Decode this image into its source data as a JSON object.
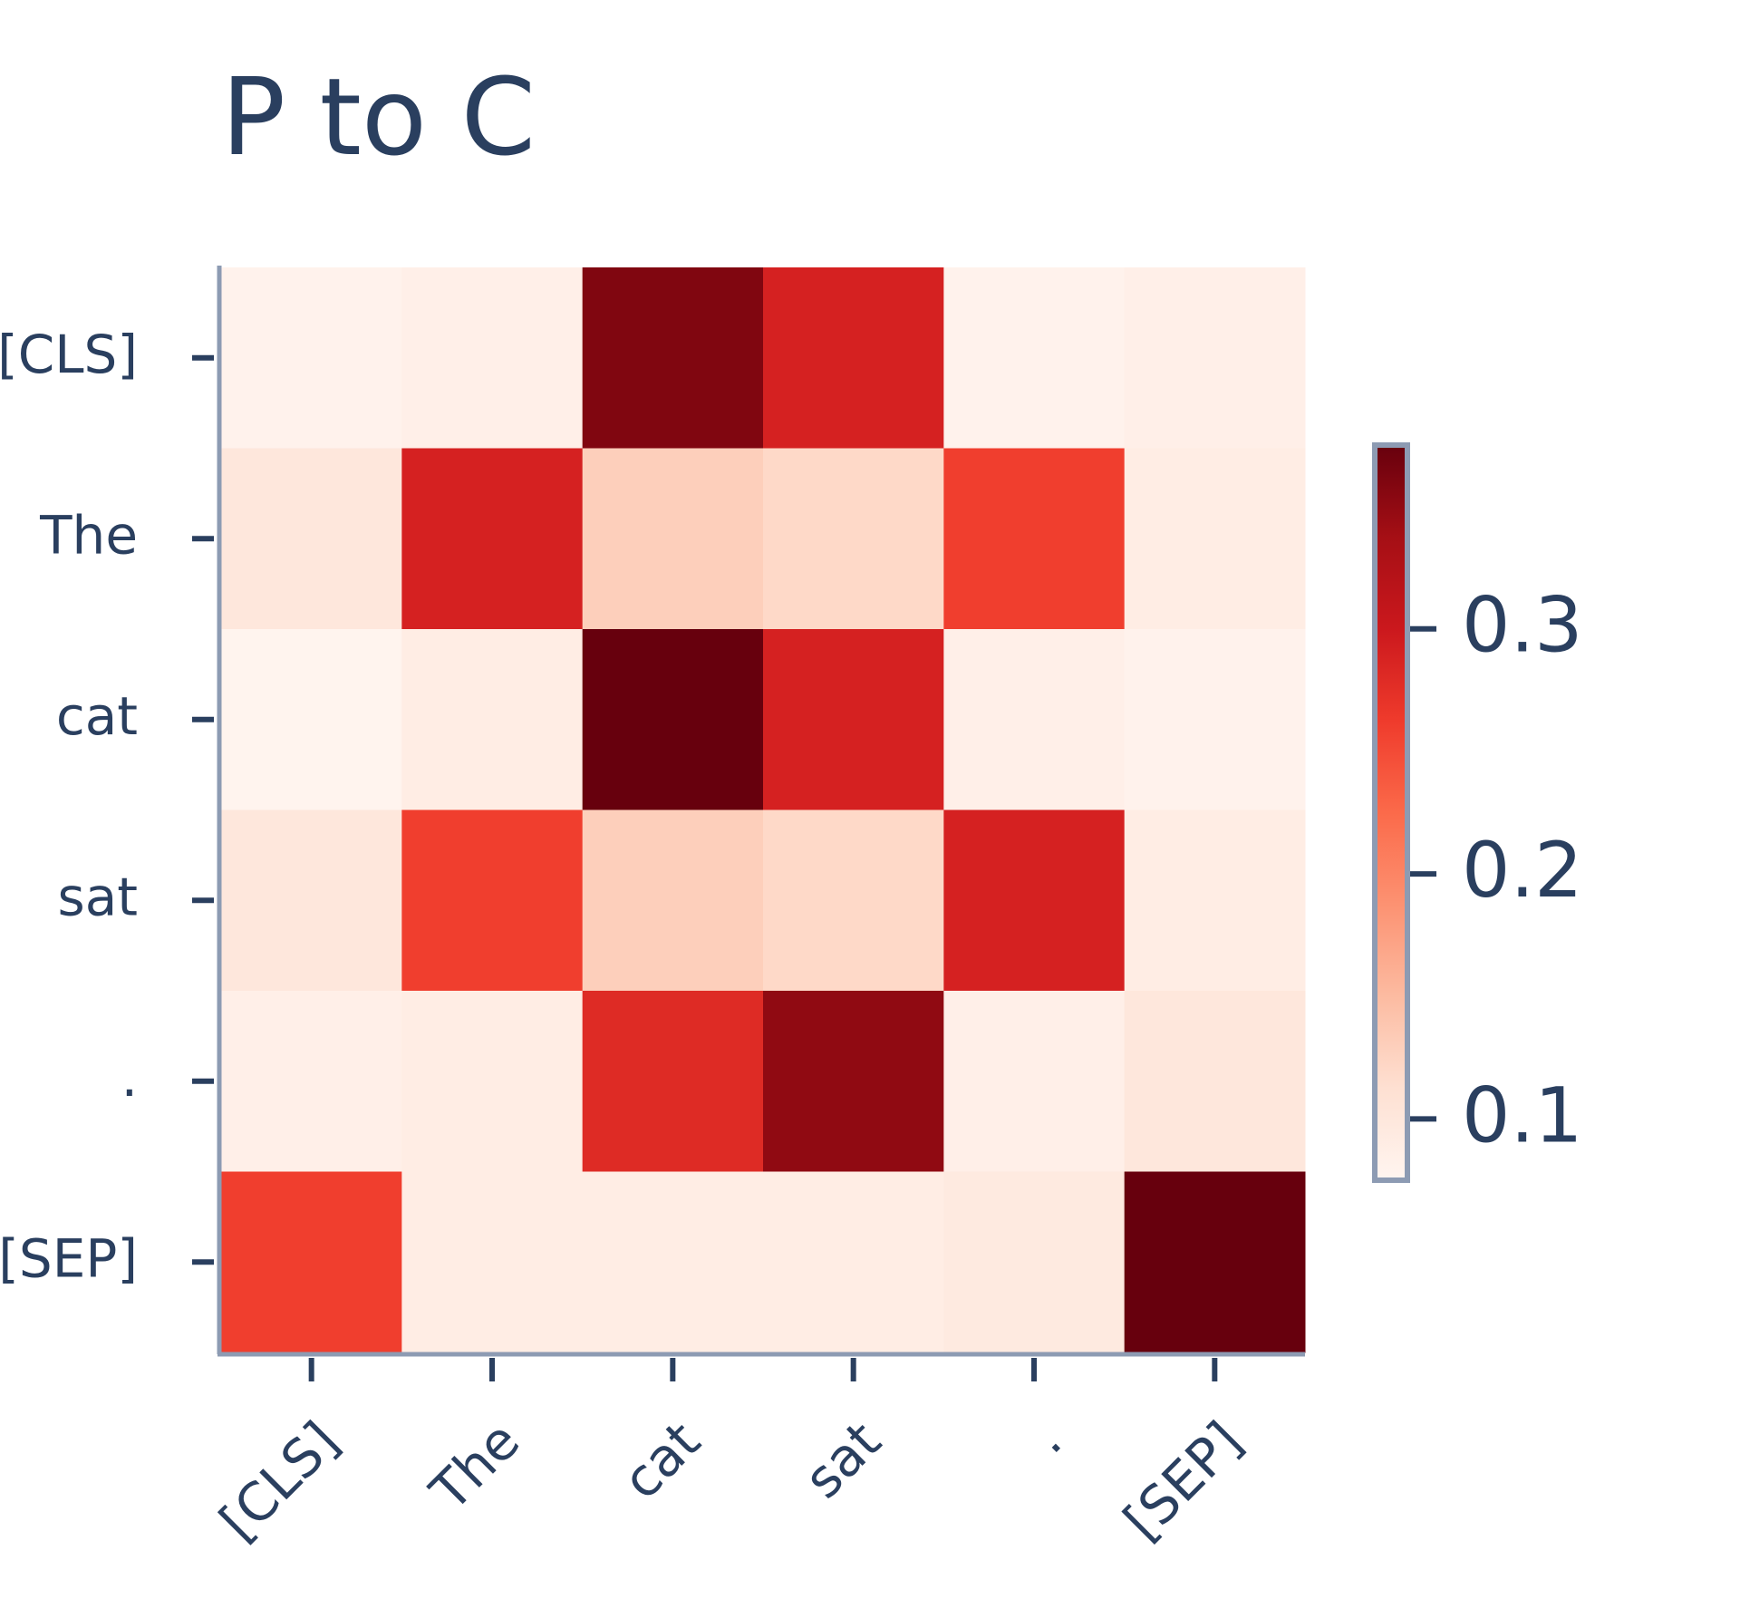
{
  "chart_data": {
    "type": "heatmap",
    "title": "P to C",
    "x": [
      "[CLS]",
      "The",
      "cat",
      "sat",
      ".",
      "[SEP]"
    ],
    "y": [
      "[CLS]",
      "The",
      "cat",
      "sat",
      ".",
      "[SEP]"
    ],
    "z": [
      [
        0.08,
        0.085,
        0.36,
        0.29,
        0.08,
        0.085
      ],
      [
        0.1,
        0.29,
        0.13,
        0.12,
        0.26,
        0.09
      ],
      [
        0.077,
        0.09,
        0.375,
        0.29,
        0.085,
        0.08
      ],
      [
        0.1,
        0.26,
        0.13,
        0.12,
        0.29,
        0.09
      ],
      [
        0.085,
        0.09,
        0.28,
        0.35,
        0.085,
        0.1
      ],
      [
        0.26,
        0.09,
        0.09,
        0.09,
        0.095,
        0.375
      ]
    ],
    "zlim": [
      0.075,
      0.375
    ],
    "zticks": [
      0.1,
      0.2,
      0.3
    ],
    "colorscale": [
      "#fff5f0",
      "#fee0d2",
      "#fcbba1",
      "#fc9272",
      "#fb6a4a",
      "#ef3b2c",
      "#cb181d",
      "#a50f15",
      "#67000d"
    ]
  }
}
